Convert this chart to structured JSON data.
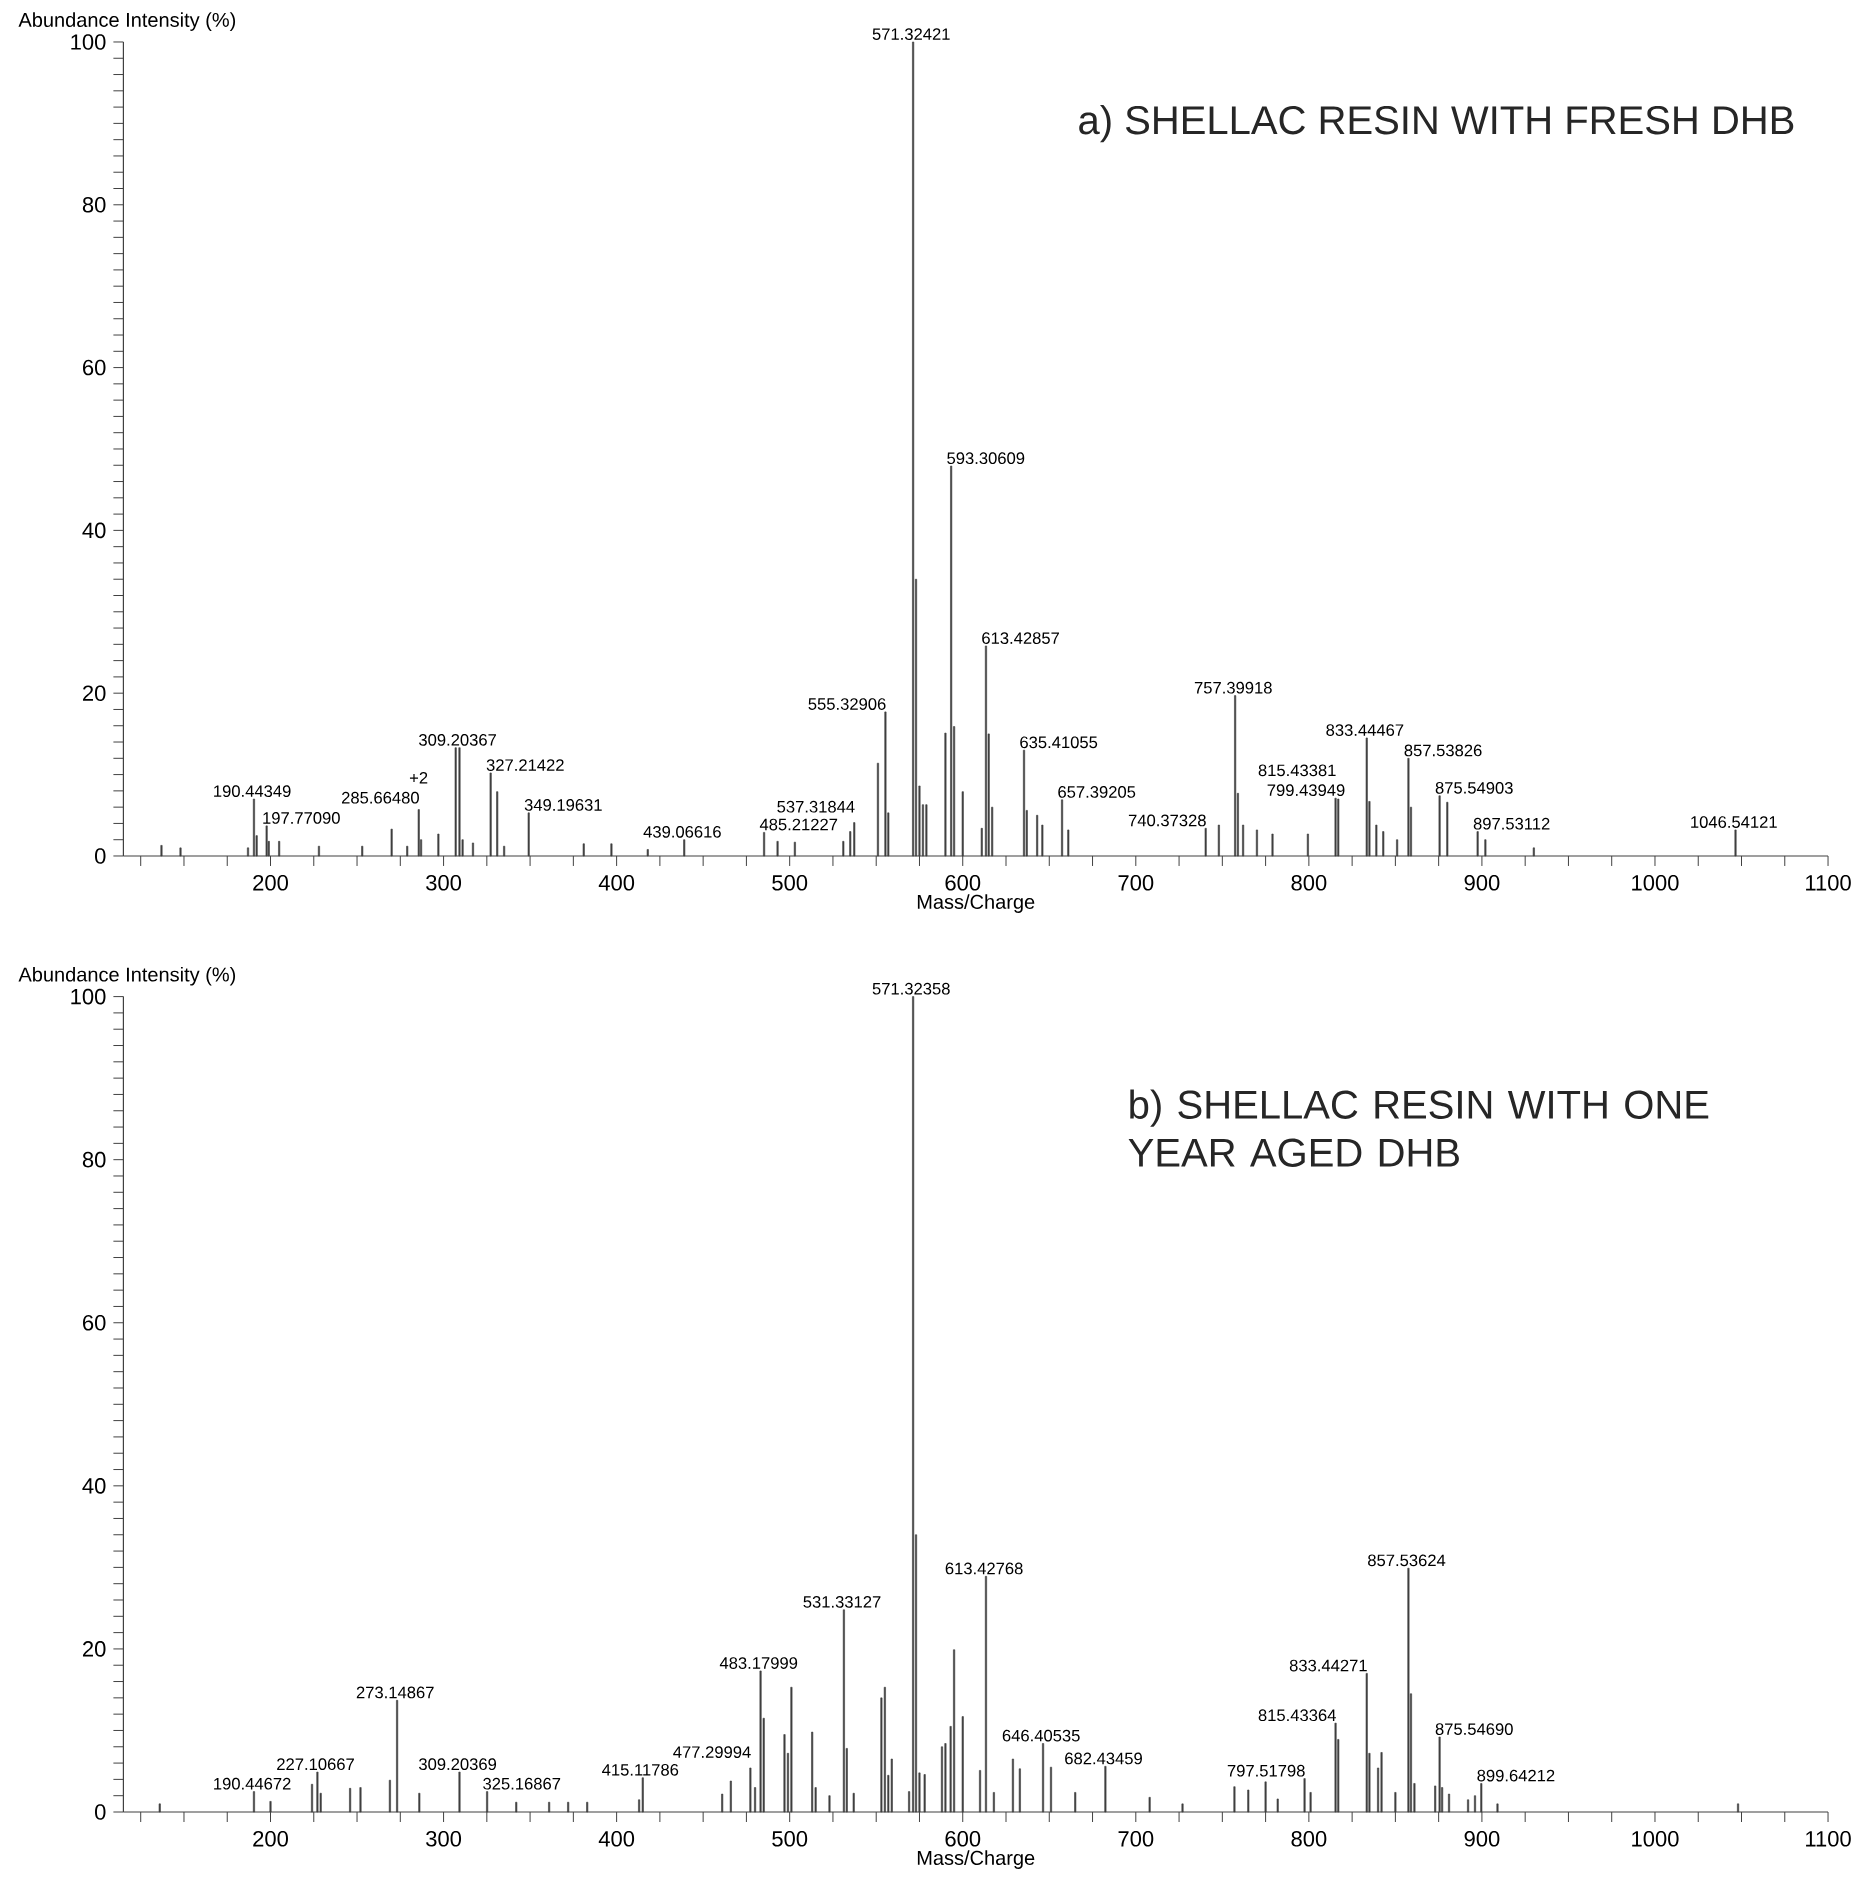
{
  "chart_data": [
    {
      "type": "bar",
      "title": "a) SHELLAC RESIN WITH FRESH DHB",
      "xlabel": "Mass/Charge",
      "ylabel": "Abundance Intensity (%)",
      "color": "#404040",
      "xlim": [
        115,
        1100
      ],
      "ylim": [
        0,
        100
      ],
      "xticks": [
        {
          "value": 125,
          "label": null
        },
        {
          "value": 150,
          "label": null
        },
        {
          "value": 175,
          "label": null
        },
        200,
        {
          "value": 225,
          "label": null
        },
        {
          "value": 250,
          "label": null
        },
        {
          "value": 275,
          "label": null
        },
        300,
        {
          "value": 325,
          "label": null
        },
        {
          "value": 350,
          "label": null
        },
        {
          "value": 375,
          "label": null
        },
        400,
        {
          "value": 425,
          "label": null
        },
        {
          "value": 450,
          "label": null
        },
        {
          "value": 475,
          "label": null
        },
        500,
        {
          "value": 525,
          "label": null
        },
        {
          "value": 550,
          "label": null
        },
        {
          "value": 575,
          "label": null
        },
        600,
        {
          "value": 625,
          "label": null
        },
        {
          "value": 650,
          "label": null
        },
        {
          "value": 675,
          "label": null
        },
        700,
        {
          "value": 725,
          "label": null
        },
        {
          "value": 750,
          "label": null
        },
        {
          "value": 775,
          "label": null
        },
        800,
        {
          "value": 825,
          "label": null
        },
        {
          "value": 850,
          "label": null
        },
        {
          "value": 875,
          "label": null
        },
        900,
        {
          "value": 925,
          "label": null
        },
        {
          "value": 950,
          "label": null
        },
        {
          "value": 975,
          "label": null
        },
        1000,
        {
          "value": 1025,
          "label": null
        },
        {
          "value": 1050,
          "label": null
        },
        {
          "value": 1075,
          "label": null
        },
        1100
      ],
      "yticks": [
        0,
        {
          "value": 2,
          "label": null
        },
        {
          "value": 4,
          "label": null
        },
        {
          "value": 6,
          "label": null
        },
        {
          "value": 8,
          "label": null
        },
        {
          "value": 10,
          "label": null
        },
        {
          "value": 12,
          "label": null
        },
        {
          "value": 14,
          "label": null
        },
        {
          "value": 16,
          "label": null
        },
        {
          "value": 18,
          "label": null
        },
        20,
        {
          "value": 22,
          "label": null
        },
        {
          "value": 24,
          "label": null
        },
        {
          "value": 26,
          "label": null
        },
        {
          "value": 28,
          "label": null
        },
        {
          "value": 30,
          "label": null
        },
        {
          "value": 32,
          "label": null
        },
        {
          "value": 34,
          "label": null
        },
        {
          "value": 36,
          "label": null
        },
        {
          "value": 38,
          "label": null
        },
        40,
        {
          "value": 42,
          "label": null
        },
        {
          "value": 44,
          "label": null
        },
        {
          "value": 46,
          "label": null
        },
        {
          "value": 48,
          "label": null
        },
        {
          "value": 50,
          "label": null
        },
        {
          "value": 52,
          "label": null
        },
        {
          "value": 54,
          "label": null
        },
        {
          "value": 56,
          "label": null
        },
        {
          "value": 58,
          "label": null
        },
        60,
        {
          "value": 62,
          "label": null
        },
        {
          "value": 64,
          "label": null
        },
        {
          "value": 66,
          "label": null
        },
        {
          "value": 68,
          "label": null
        },
        {
          "value": 70,
          "label": null
        },
        {
          "value": 72,
          "label": null
        },
        {
          "value": 74,
          "label": null
        },
        {
          "value": 76,
          "label": null
        },
        {
          "value": 78,
          "label": null
        },
        80,
        {
          "value": 82,
          "label": null
        },
        {
          "value": 84,
          "label": null
        },
        {
          "value": 86,
          "label": null
        },
        {
          "value": 88,
          "label": null
        },
        {
          "value": 90,
          "label": null
        },
        {
          "value": 92,
          "label": null
        },
        {
          "value": 94,
          "label": null
        },
        {
          "value": 96,
          "label": null
        },
        {
          "value": 98,
          "label": null
        },
        100
      ],
      "x": [
        137,
        148,
        187,
        190.44349,
        192,
        197.7709,
        199,
        205,
        228,
        253,
        270,
        279,
        285.6648,
        287,
        297,
        307,
        309.20367,
        311,
        317,
        327.21422,
        331,
        335,
        349.19631,
        381,
        397,
        418,
        439.06616,
        485.21227,
        493,
        503,
        531,
        535,
        537.31844,
        551,
        555.32906,
        557,
        571.32421,
        573,
        575,
        577,
        579,
        590,
        593.30609,
        595,
        600,
        611,
        613.42857,
        615,
        617,
        635.41055,
        637,
        643,
        646,
        657.39205,
        661,
        740.37328,
        748,
        757.39918,
        759,
        762,
        770,
        779,
        799.43949,
        815.43381,
        817,
        833.44467,
        835,
        839,
        843,
        851,
        857.53826,
        859,
        875.54903,
        880,
        897.53112,
        902,
        930,
        1046.54121
      ],
      "values": [
        1.3,
        1.0,
        1.0,
        7.0,
        2.5,
        3.7,
        1.8,
        1.8,
        1.2,
        1.2,
        3.3,
        1.2,
        5.7,
        2.0,
        2.7,
        13.3,
        13.3,
        2.0,
        1.6,
        10.2,
        7.9,
        1.2,
        5.3,
        1.5,
        1.5,
        0.8,
        2.0,
        2.9,
        1.8,
        1.7,
        1.8,
        3.0,
        4.1,
        11.4,
        17.7,
        5.3,
        100,
        34.0,
        8.6,
        6.3,
        6.3,
        15.1,
        47.9,
        15.9,
        7.9,
        3.4,
        25.8,
        15.0,
        6.0,
        13.0,
        5.6,
        5.0,
        3.8,
        6.9,
        3.2,
        3.4,
        3.8,
        19.7,
        7.7,
        3.8,
        3.2,
        2.7,
        2.7,
        7.1,
        7.0,
        14.5,
        6.7,
        3.8,
        3.0,
        2.0,
        12.0,
        6.0,
        7.4,
        6.6,
        3.0,
        2.0,
        1.0,
        3.2
      ],
      "annotations": [
        {
          "text": "190.44349",
          "x": 190.44349,
          "y": 7.0
        },
        {
          "text": "197.77090",
          "x": 197.7709,
          "y": 3.7
        },
        {
          "text": "285.66480",
          "x": 285.6648,
          "y": 5.7
        },
        {
          "text": "+2",
          "x": 285.6648,
          "y": 5.7
        },
        {
          "text": "309.20367",
          "x": 309.20367,
          "y": 13.3
        },
        {
          "text": "327.21422",
          "x": 327.21422,
          "y": 10.2
        },
        {
          "text": "349.19631",
          "x": 349.19631,
          "y": 5.3
        },
        {
          "text": "439.06616",
          "x": 439.06616,
          "y": 2.0
        },
        {
          "text": "485.21227",
          "x": 485.21227,
          "y": 2.9
        },
        {
          "text": "537.31844",
          "x": 537.31844,
          "y": 4.1
        },
        {
          "text": "555.32906",
          "x": 555.32906,
          "y": 17.7
        },
        {
          "text": "571.32421",
          "x": 571.32421,
          "y": 100
        },
        {
          "text": "593.30609",
          "x": 593.30609,
          "y": 47.9
        },
        {
          "text": "613.42857",
          "x": 613.42857,
          "y": 25.8
        },
        {
          "text": "635.41055",
          "x": 635.41055,
          "y": 13.0
        },
        {
          "text": "657.39205",
          "x": 657.39205,
          "y": 6.9
        },
        {
          "text": "740.37328",
          "x": 740.37328,
          "y": 3.4
        },
        {
          "text": "757.39918",
          "x": 757.39918,
          "y": 19.7
        },
        {
          "text": "799.43949",
          "x": 799.43949,
          "y": 2.7
        },
        {
          "text": "815.43381",
          "x": 815.43381,
          "y": 7.1
        },
        {
          "text": "833.44467",
          "x": 833.44467,
          "y": 14.5
        },
        {
          "text": "857.53826",
          "x": 857.53826,
          "y": 12.0
        },
        {
          "text": "875.54903",
          "x": 875.54903,
          "y": 7.4
        },
        {
          "text": "897.53112",
          "x": 897.53112,
          "y": 3.0
        },
        {
          "text": "1046.54121",
          "x": 1046.54121,
          "y": 3.2
        }
      ]
    },
    {
      "type": "bar",
      "title": "b) SHELLAC RESIN WITH ONE YEAR AGED DHB",
      "xlabel": "Mass/Charge",
      "ylabel": "Abundance Intensity (%)",
      "color": "#404040",
      "xlim": [
        115,
        1100
      ],
      "ylim": [
        0,
        100
      ],
      "xticks": [
        {
          "value": 125,
          "label": null
        },
        {
          "value": 150,
          "label": null
        },
        {
          "value": 175,
          "label": null
        },
        200,
        {
          "value": 225,
          "label": null
        },
        {
          "value": 250,
          "label": null
        },
        {
          "value": 275,
          "label": null
        },
        300,
        {
          "value": 325,
          "label": null
        },
        {
          "value": 350,
          "label": null
        },
        {
          "value": 375,
          "label": null
        },
        400,
        {
          "value": 425,
          "label": null
        },
        {
          "value": 450,
          "label": null
        },
        {
          "value": 475,
          "label": null
        },
        500,
        {
          "value": 525,
          "label": null
        },
        {
          "value": 550,
          "label": null
        },
        {
          "value": 575,
          "label": null
        },
        600,
        {
          "value": 625,
          "label": null
        },
        {
          "value": 650,
          "label": null
        },
        {
          "value": 675,
          "label": null
        },
        700,
        {
          "value": 725,
          "label": null
        },
        {
          "value": 750,
          "label": null
        },
        {
          "value": 775,
          "label": null
        },
        800,
        {
          "value": 825,
          "label": null
        },
        {
          "value": 850,
          "label": null
        },
        {
          "value": 875,
          "label": null
        },
        900,
        {
          "value": 925,
          "label": null
        },
        {
          "value": 950,
          "label": null
        },
        {
          "value": 975,
          "label": null
        },
        1000,
        {
          "value": 1025,
          "label": null
        },
        {
          "value": 1050,
          "label": null
        },
        {
          "value": 1075,
          "label": null
        },
        1100
      ],
      "yticks": [
        0,
        {
          "value": 2,
          "label": null
        },
        {
          "value": 4,
          "label": null
        },
        {
          "value": 6,
          "label": null
        },
        {
          "value": 8,
          "label": null
        },
        {
          "value": 10,
          "label": null
        },
        {
          "value": 12,
          "label": null
        },
        {
          "value": 14,
          "label": null
        },
        {
          "value": 16,
          "label": null
        },
        {
          "value": 18,
          "label": null
        },
        20,
        {
          "value": 22,
          "label": null
        },
        {
          "value": 24,
          "label": null
        },
        {
          "value": 26,
          "label": null
        },
        {
          "value": 28,
          "label": null
        },
        {
          "value": 30,
          "label": null
        },
        {
          "value": 32,
          "label": null
        },
        {
          "value": 34,
          "label": null
        },
        {
          "value": 36,
          "label": null
        },
        {
          "value": 38,
          "label": null
        },
        40,
        {
          "value": 42,
          "label": null
        },
        {
          "value": 44,
          "label": null
        },
        {
          "value": 46,
          "label": null
        },
        {
          "value": 48,
          "label": null
        },
        {
          "value": 50,
          "label": null
        },
        {
          "value": 52,
          "label": null
        },
        {
          "value": 54,
          "label": null
        },
        {
          "value": 56,
          "label": null
        },
        {
          "value": 58,
          "label": null
        },
        60,
        {
          "value": 62,
          "label": null
        },
        {
          "value": 64,
          "label": null
        },
        {
          "value": 66,
          "label": null
        },
        {
          "value": 68,
          "label": null
        },
        {
          "value": 70,
          "label": null
        },
        {
          "value": 72,
          "label": null
        },
        {
          "value": 74,
          "label": null
        },
        {
          "value": 76,
          "label": null
        },
        {
          "value": 78,
          "label": null
        },
        80,
        {
          "value": 82,
          "label": null
        },
        {
          "value": 84,
          "label": null
        },
        {
          "value": 86,
          "label": null
        },
        {
          "value": 88,
          "label": null
        },
        {
          "value": 90,
          "label": null
        },
        {
          "value": 92,
          "label": null
        },
        {
          "value": 94,
          "label": null
        },
        {
          "value": 96,
          "label": null
        },
        {
          "value": 98,
          "label": null
        },
        100
      ],
      "x": [
        136,
        190.44672,
        200,
        224,
        227.10667,
        229,
        246,
        252,
        269,
        273.14867,
        286,
        309.20369,
        325.16867,
        342,
        361,
        372,
        383,
        413,
        415.11786,
        461,
        466,
        477.29994,
        480,
        483.17999,
        485,
        497,
        499,
        501,
        513,
        515,
        523,
        531.33127,
        533,
        537,
        553,
        555,
        557,
        559,
        569,
        571.32358,
        573,
        575,
        578,
        588,
        590,
        593,
        595,
        600,
        610,
        613.42768,
        618,
        629,
        633,
        646.40535,
        651,
        665,
        682.43459,
        708,
        727,
        757,
        765,
        775,
        782,
        797.51798,
        801,
        815.43364,
        817,
        833.44271,
        835,
        840,
        842,
        850,
        857.53624,
        859,
        861,
        873,
        875.5469,
        877,
        881,
        892,
        896,
        899.64212,
        909,
        1048
      ],
      "values": [
        1.0,
        2.5,
        1.3,
        3.4,
        4.9,
        2.3,
        2.9,
        3.0,
        3.9,
        13.7,
        2.3,
        4.9,
        2.5,
        1.2,
        1.2,
        1.2,
        1.2,
        1.5,
        4.2,
        2.2,
        3.8,
        5.4,
        3.0,
        17.3,
        11.5,
        9.5,
        7.2,
        15.3,
        9.8,
        3.0,
        2.0,
        24.8,
        7.8,
        2.3,
        14.0,
        15.3,
        4.5,
        6.5,
        2.5,
        100,
        34.0,
        4.8,
        4.6,
        8.0,
        8.4,
        10.5,
        19.9,
        11.7,
        5.1,
        28.9,
        2.4,
        6.5,
        5.3,
        8.4,
        5.5,
        2.4,
        5.6,
        1.8,
        1.0,
        3.1,
        2.7,
        3.7,
        1.6,
        4.1,
        2.4,
        10.9,
        8.9,
        17.0,
        7.2,
        5.4,
        7.3,
        2.4,
        29.9,
        14.5,
        3.5,
        3.2,
        9.2,
        3.0,
        2.2,
        1.5,
        2.0,
        3.5,
        1.0,
        1.0
      ],
      "annotations": [
        {
          "text": "190.44672",
          "x": 190.44672,
          "y": 2.5
        },
        {
          "text": "227.10667",
          "x": 227.10667,
          "y": 4.9
        },
        {
          "text": "273.14867",
          "x": 273.14867,
          "y": 13.7
        },
        {
          "text": "309.20369",
          "x": 309.20369,
          "y": 4.9
        },
        {
          "text": "325.16867",
          "x": 325.16867,
          "y": 2.5
        },
        {
          "text": "415.11786",
          "x": 415.11786,
          "y": 4.2
        },
        {
          "text": "477.29994",
          "x": 477.29994,
          "y": 5.4
        },
        {
          "text": "483.17999",
          "x": 483.17999,
          "y": 17.3
        },
        {
          "text": "531.33127",
          "x": 531.33127,
          "y": 24.8
        },
        {
          "text": "571.32358",
          "x": 571.32358,
          "y": 100
        },
        {
          "text": "613.42768",
          "x": 613.42768,
          "y": 28.9
        },
        {
          "text": "646.40535",
          "x": 646.40535,
          "y": 8.4
        },
        {
          "text": "682.43459",
          "x": 682.43459,
          "y": 5.6
        },
        {
          "text": "797.51798",
          "x": 797.51798,
          "y": 4.1
        },
        {
          "text": "815.43364",
          "x": 815.43364,
          "y": 10.9
        },
        {
          "text": "833.44271",
          "x": 833.44271,
          "y": 17.0
        },
        {
          "text": "857.53624",
          "x": 857.53624,
          "y": 29.9
        },
        {
          "text": "875.54690",
          "x": 875.5469,
          "y": 9.2
        },
        {
          "text": "899.64212",
          "x": 899.64212,
          "y": 3.5
        }
      ]
    }
  ]
}
